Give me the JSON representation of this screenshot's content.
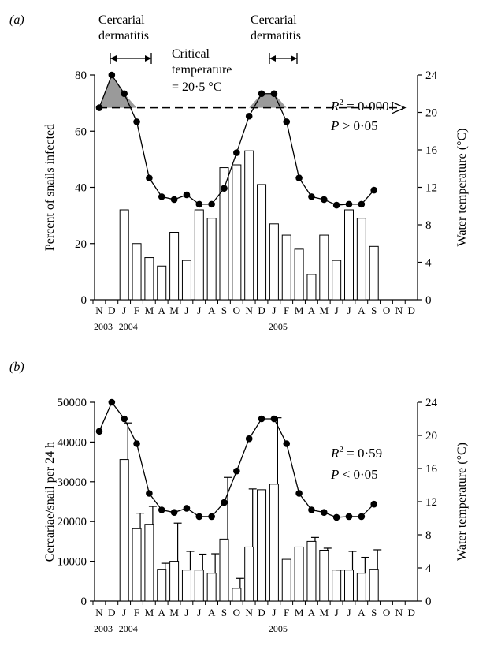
{
  "chart_data": [
    {
      "type": "bar",
      "panel_label": "(a)",
      "months": [
        "N",
        "D",
        "J",
        "F",
        "M",
        "A",
        "M",
        "J",
        "J",
        "A",
        "S",
        "O",
        "N",
        "D",
        "J",
        "F",
        "M",
        "A",
        "M",
        "J",
        "J",
        "A",
        "S",
        "O",
        "N",
        "D"
      ],
      "years": [
        "2003",
        "2004",
        "2005"
      ],
      "ylabel": "Percent of snails infected",
      "ylabel_right": "Water temperature (°C)",
      "ylim": [
        0,
        80
      ],
      "yticks": [
        "0",
        "20",
        "40",
        "60",
        "80"
      ],
      "ylim_right": [
        0,
        24
      ],
      "yticks_right": [
        "0",
        "4",
        "8",
        "12",
        "16",
        "20",
        "24"
      ],
      "bars": [
        null,
        null,
        32,
        20,
        15,
        12,
        24,
        14,
        32,
        29,
        47,
        48,
        53,
        41,
        27,
        23,
        18,
        9,
        23,
        14,
        32,
        29,
        19,
        null,
        null,
        null
      ],
      "temperature": [
        20.5,
        24,
        22,
        19,
        13,
        11,
        10.7,
        11.2,
        10.2,
        10.2,
        11.9,
        15.7,
        19.6,
        22,
        22,
        19,
        13,
        11,
        10.7,
        10.1,
        10.2,
        10.2,
        11.7,
        null,
        null,
        null
      ],
      "annotations": {
        "cercarial_1": "Cercarial",
        "cercarial_1b": "dermatitis",
        "cercarial_2": "Cercarial",
        "cercarial_2b": "dermatitis",
        "critical_1": "Critical",
        "critical_2": "temperature",
        "critical_3": "= 20·5 °C",
        "critical_temperature": 20.5
      },
      "stats": {
        "r2_prefix": "R",
        "r2_sup": "2",
        "r2_value": " = 0·0001",
        "p_prefix": "P",
        "p_value": " > 0·05"
      }
    },
    {
      "type": "bar",
      "panel_label": "(b)",
      "months": [
        "N",
        "D",
        "J",
        "F",
        "M",
        "A",
        "M",
        "J",
        "J",
        "A",
        "S",
        "O",
        "N",
        "D",
        "J",
        "F",
        "M",
        "A",
        "M",
        "J",
        "J",
        "A",
        "S",
        "O",
        "N",
        "D"
      ],
      "years": [
        "2003",
        "2004",
        "2005"
      ],
      "ylabel": "Cercariae/snail per 24 h",
      "ylabel_right": "Water temperature (°C)",
      "ylim": [
        0,
        50000
      ],
      "yticks": [
        "0",
        "10000",
        "20000",
        "30000",
        "40000",
        "50000"
      ],
      "ylim_right": [
        0,
        24
      ],
      "yticks_right": [
        "0",
        "4",
        "8",
        "12",
        "16",
        "20",
        "24"
      ],
      "bars": [
        null,
        null,
        35600,
        18200,
        19300,
        8000,
        10000,
        7800,
        7800,
        7000,
        15600,
        3200,
        13600,
        28000,
        29400,
        10500,
        13600,
        15000,
        12800,
        7800,
        7800,
        7000,
        8000,
        null,
        null,
        null
      ],
      "errors": [
        null,
        null,
        9200,
        3900,
        4500,
        1500,
        9600,
        4700,
        4000,
        4900,
        15500,
        2500,
        14600,
        null,
        16700,
        null,
        null,
        1000,
        500,
        0,
        4700,
        4000,
        4900,
        10100,
        null,
        null
      ],
      "temperature": [
        20.5,
        24,
        22,
        19,
        13,
        11,
        10.7,
        11.2,
        10.2,
        10.2,
        11.9,
        15.7,
        19.6,
        22,
        22,
        19,
        13,
        11,
        10.7,
        10.1,
        10.2,
        10.2,
        11.7,
        null,
        null,
        null
      ],
      "stats": {
        "r2_prefix": "R",
        "r2_sup": "2",
        "r2_value": " = 0·59",
        "p_prefix": "P",
        "p_value": " < 0·05"
      }
    }
  ]
}
